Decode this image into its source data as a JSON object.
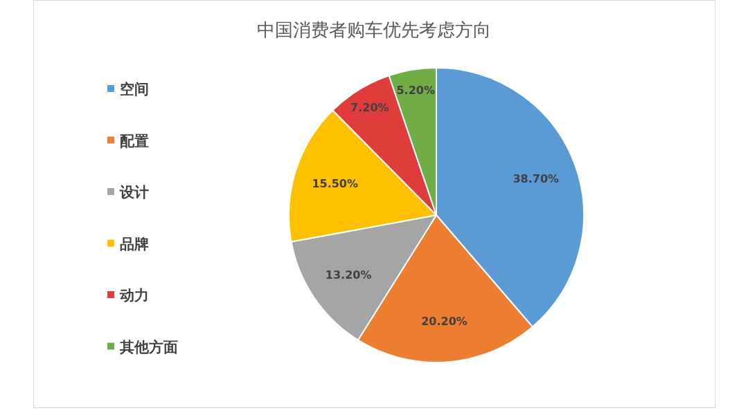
{
  "chart_data": {
    "type": "pie",
    "title": "中国消费者购车优先考虑方向",
    "categories": [
      "空间",
      "配置",
      "设计",
      "品牌",
      "动力",
      "其他方面"
    ],
    "values": [
      38.7,
      20.2,
      13.2,
      15.5,
      7.2,
      5.2
    ],
    "colors": [
      "#5b9bd5",
      "#ed7d31",
      "#a5a5a5",
      "#ffc000",
      "#e03c3c",
      "#70ad47"
    ],
    "value_labels": [
      "38.70%",
      "20.20%",
      "13.20%",
      "15.50%",
      "7.20%",
      "5.20%"
    ],
    "legend": "left"
  }
}
